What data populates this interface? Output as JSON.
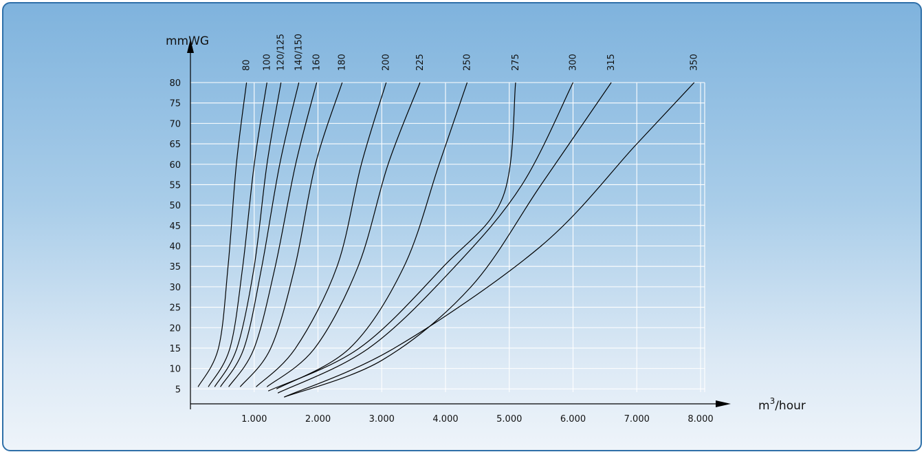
{
  "chart_data": {
    "type": "line",
    "ylabel": "mmWG",
    "xlabel": {
      "base": "m",
      "sup": "3",
      "rest": "/hour"
    },
    "xlim": [
      0,
      8000
    ],
    "ylim": [
      0,
      80
    ],
    "x_ticks": [
      1000,
      2000,
      3000,
      4000,
      5000,
      6000,
      7000,
      8000
    ],
    "x_tick_labels": [
      "1.000",
      "2.000",
      "3.000",
      "4.000",
      "5.000",
      "6.000",
      "7.000",
      "8.000"
    ],
    "y_ticks": [
      5,
      10,
      15,
      20,
      25,
      30,
      35,
      40,
      45,
      50,
      55,
      60,
      65,
      70,
      75,
      80
    ],
    "y_tick_labels": [
      "5",
      "10",
      "15",
      "20",
      "25",
      "30",
      "35",
      "40",
      "45",
      "50",
      "55",
      "60",
      "65",
      "70",
      "75",
      "80"
    ],
    "grid": true,
    "series": [
      {
        "name": "80",
        "points": [
          [
            120,
            5.5
          ],
          [
            440,
            15
          ],
          [
            590,
            35
          ],
          [
            720,
            60
          ],
          [
            880,
            80
          ]
        ]
      },
      {
        "name": "100",
        "points": [
          [
            280,
            5.5
          ],
          [
            620,
            15
          ],
          [
            820,
            35
          ],
          [
            1000,
            60
          ],
          [
            1200,
            80
          ]
        ]
      },
      {
        "name": "120/125",
        "points": [
          [
            380,
            5.5
          ],
          [
            730,
            15
          ],
          [
            1000,
            35
          ],
          [
            1200,
            60
          ],
          [
            1420,
            80
          ]
        ]
      },
      {
        "name": "140/150",
        "points": [
          [
            470,
            5.5
          ],
          [
            840,
            15
          ],
          [
            1120,
            35
          ],
          [
            1400,
            60
          ],
          [
            1700,
            80
          ]
        ]
      },
      {
        "name": "160",
        "points": [
          [
            600,
            5.5
          ],
          [
            1000,
            15
          ],
          [
            1330,
            35
          ],
          [
            1650,
            60
          ],
          [
            1980,
            80
          ]
        ]
      },
      {
        "name": "180",
        "points": [
          [
            780,
            5.5
          ],
          [
            1260,
            15
          ],
          [
            1640,
            35
          ],
          [
            1960,
            60
          ],
          [
            2380,
            80
          ]
        ]
      },
      {
        "name": "200",
        "points": [
          [
            1030,
            5.5
          ],
          [
            1650,
            15
          ],
          [
            2300,
            35
          ],
          [
            2680,
            60
          ],
          [
            3070,
            80
          ]
        ]
      },
      {
        "name": "225",
        "points": [
          [
            1200,
            5.5
          ],
          [
            1950,
            15
          ],
          [
            2630,
            35
          ],
          [
            3100,
            60
          ],
          [
            3600,
            80
          ]
        ]
      },
      {
        "name": "250",
        "points": [
          [
            1350,
            5
          ],
          [
            2500,
            15
          ],
          [
            3350,
            35
          ],
          [
            3900,
            60
          ],
          [
            4340,
            80
          ]
        ]
      },
      {
        "name": "275",
        "points": [
          [
            1220,
            4.5
          ],
          [
            2650,
            15
          ],
          [
            3970,
            35
          ],
          [
            4900,
            52
          ],
          [
            5100,
            80
          ]
        ]
      },
      {
        "name": "300",
        "points": [
          [
            1370,
            4
          ],
          [
            2800,
            15
          ],
          [
            4150,
            35
          ],
          [
            5200,
            55
          ],
          [
            6000,
            80
          ]
        ]
      },
      {
        "name": "315",
        "points": [
          [
            1470,
            3
          ],
          [
            3000,
            12
          ],
          [
            4400,
            30
          ],
          [
            5500,
            55
          ],
          [
            6600,
            80
          ]
        ]
      },
      {
        "name": "350",
        "points": [
          [
            1470,
            3
          ],
          [
            3200,
            15
          ],
          [
            5500,
            40
          ],
          [
            7000,
            65
          ],
          [
            7900,
            80
          ]
        ]
      }
    ]
  }
}
